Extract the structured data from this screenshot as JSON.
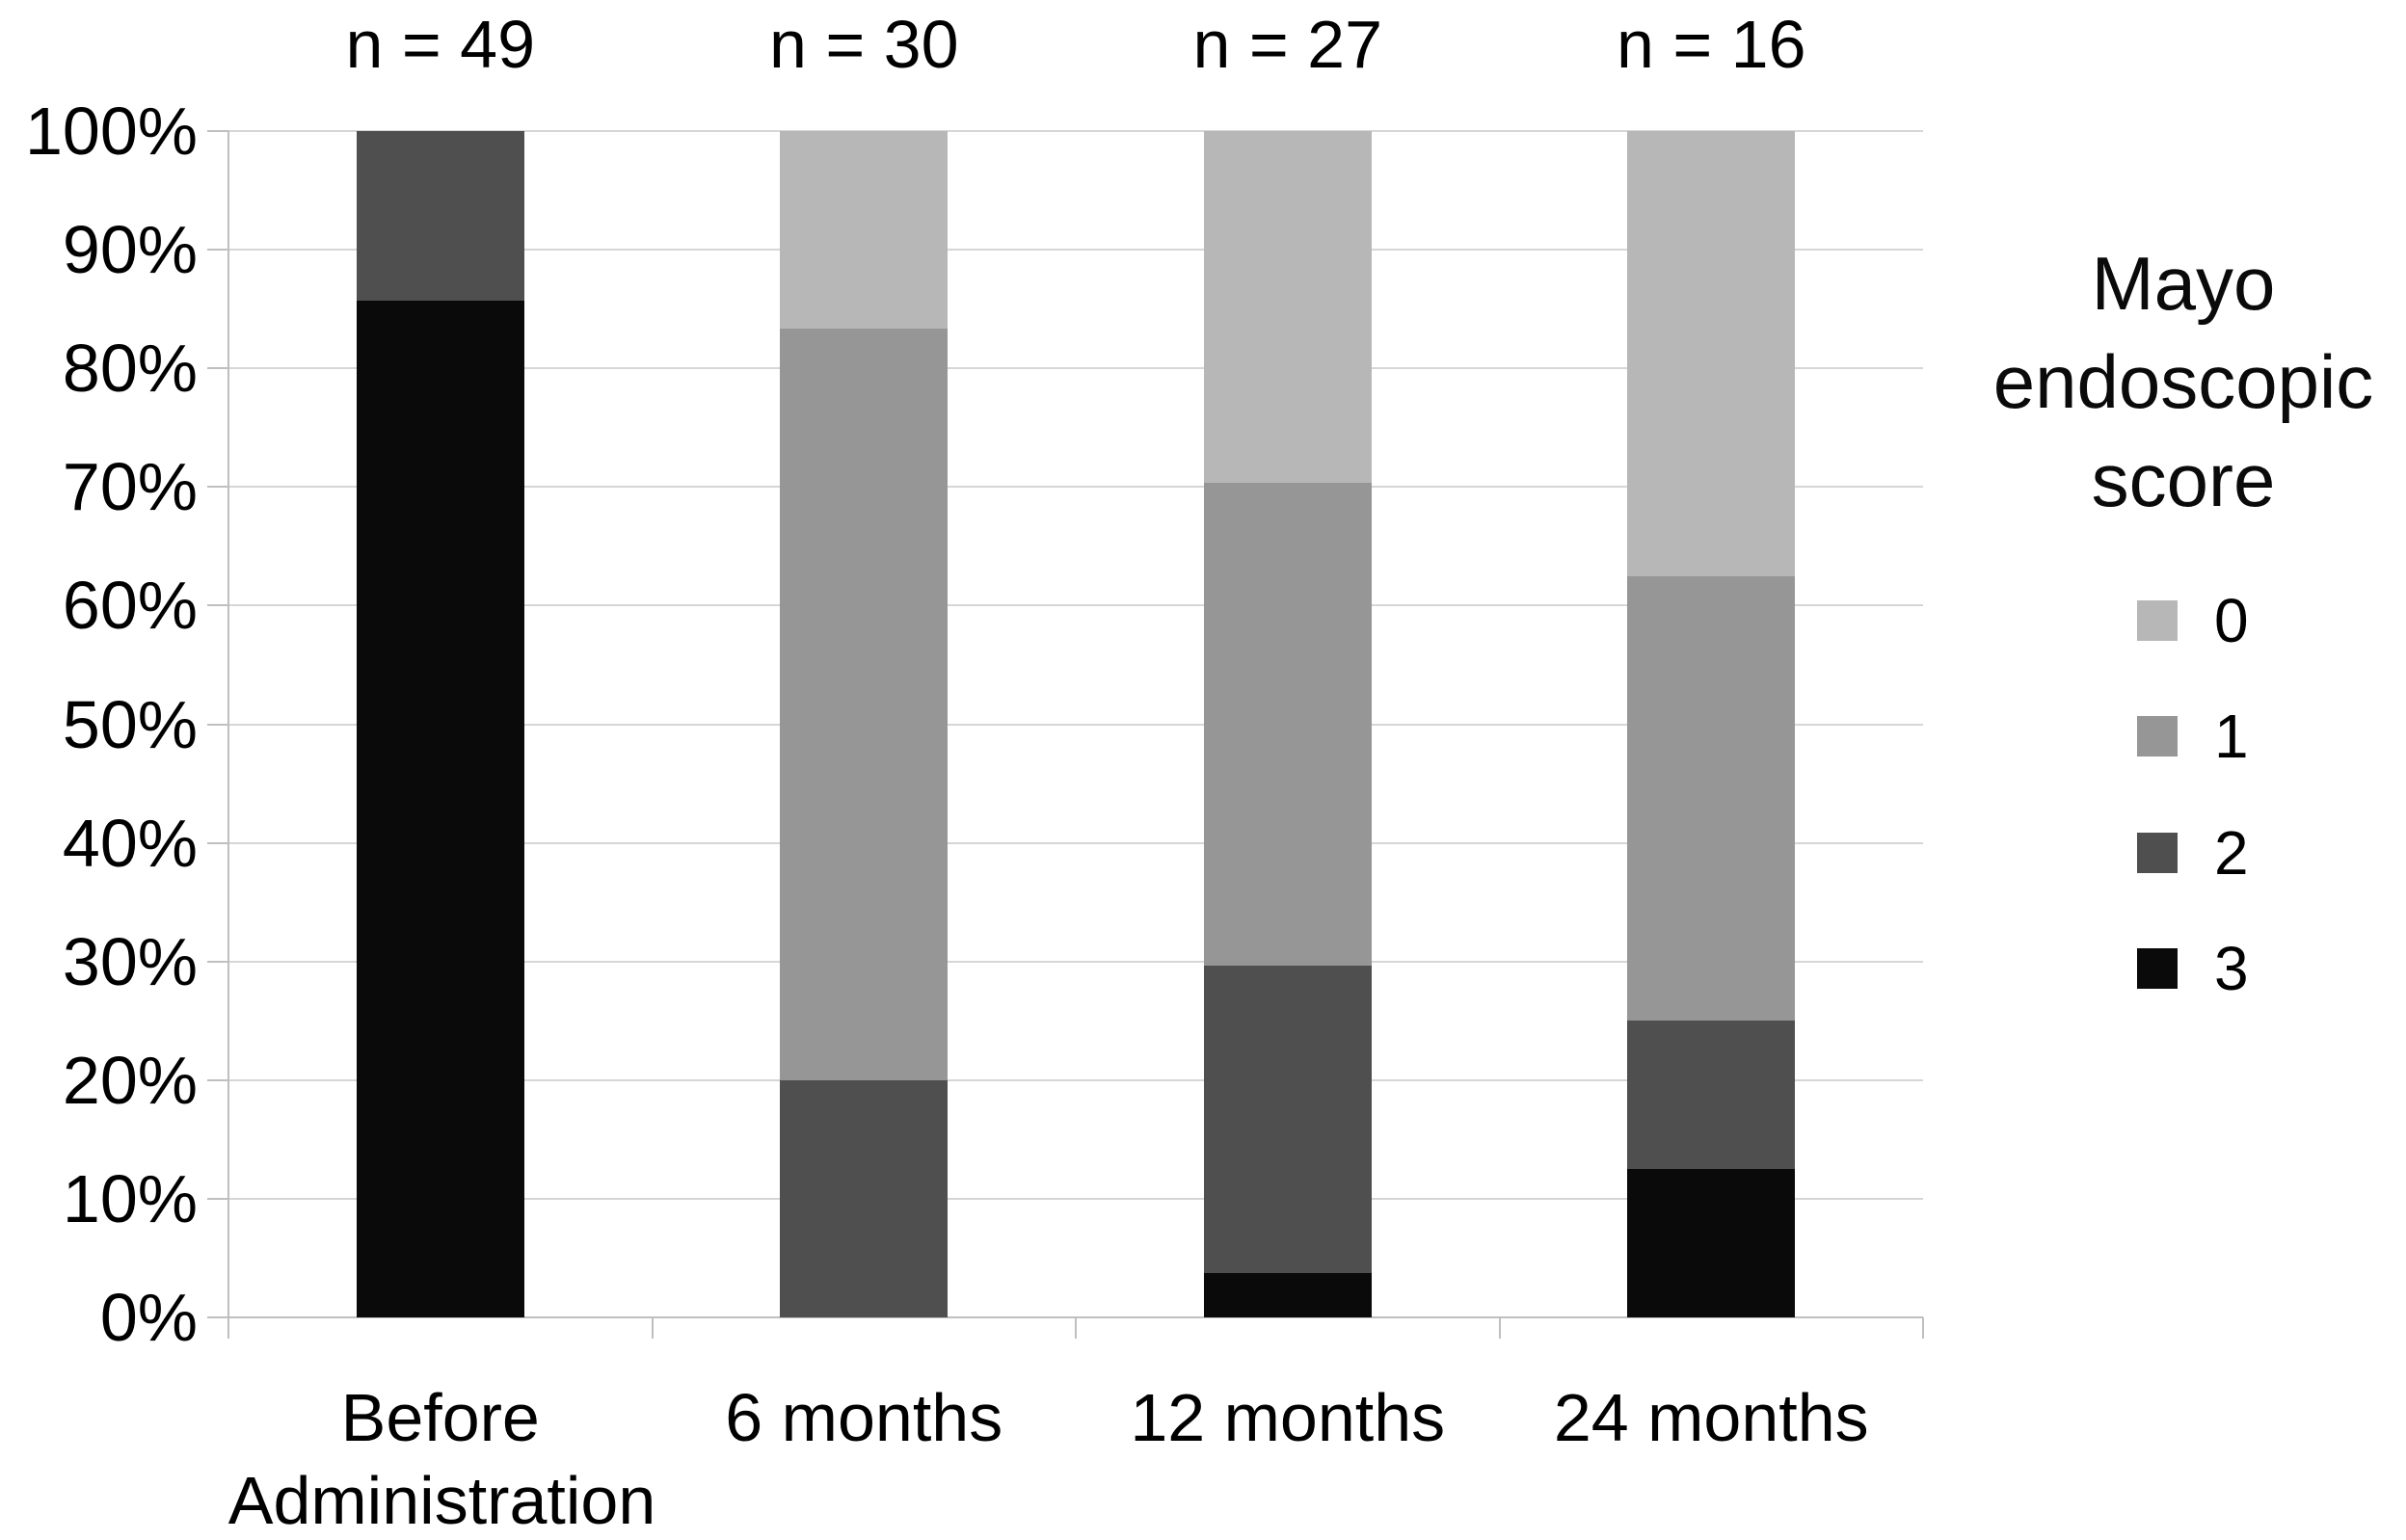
{
  "chart_data": {
    "type": "bar",
    "stacked": true,
    "units": "percent",
    "title": "",
    "categories": [
      "Before Administration",
      "6 months",
      "12 months",
      "24 months"
    ],
    "n_labels": [
      "n = 49",
      "n = 30",
      "n = 27",
      "n = 16"
    ],
    "series": [
      {
        "name": "0",
        "color": "#b7b7b7",
        "values": [
          0,
          16.67,
          29.63,
          37.5
        ]
      },
      {
        "name": "1",
        "color": "#969696",
        "values": [
          0,
          63.33,
          40.74,
          37.5
        ]
      },
      {
        "name": "2",
        "color": "#4f4f4f",
        "values": [
          14.29,
          20.0,
          25.93,
          12.5
        ]
      },
      {
        "name": "3",
        "color": "#0a0a0a",
        "values": [
          85.71,
          0,
          3.7,
          12.5
        ]
      }
    ],
    "stack_order_bottom_to_top": [
      "3",
      "2",
      "1",
      "0"
    ],
    "y_axis": {
      "min": 0,
      "max": 100,
      "step": 10,
      "tick_labels_top_to_bottom": [
        "100%",
        "90%",
        "80%",
        "70%",
        "60%",
        "50%",
        "40%",
        "30%",
        "20%",
        "10%",
        "0%"
      ]
    },
    "legend": {
      "title": "Mayo endoscopic score",
      "position": "right",
      "entries": [
        "0",
        "1",
        "2",
        "3"
      ]
    },
    "grid": true,
    "colors": {
      "gridline": "#d6d6d6",
      "axis": "#bfbfbf",
      "background": "#ffffff",
      "text": "#000000"
    }
  }
}
